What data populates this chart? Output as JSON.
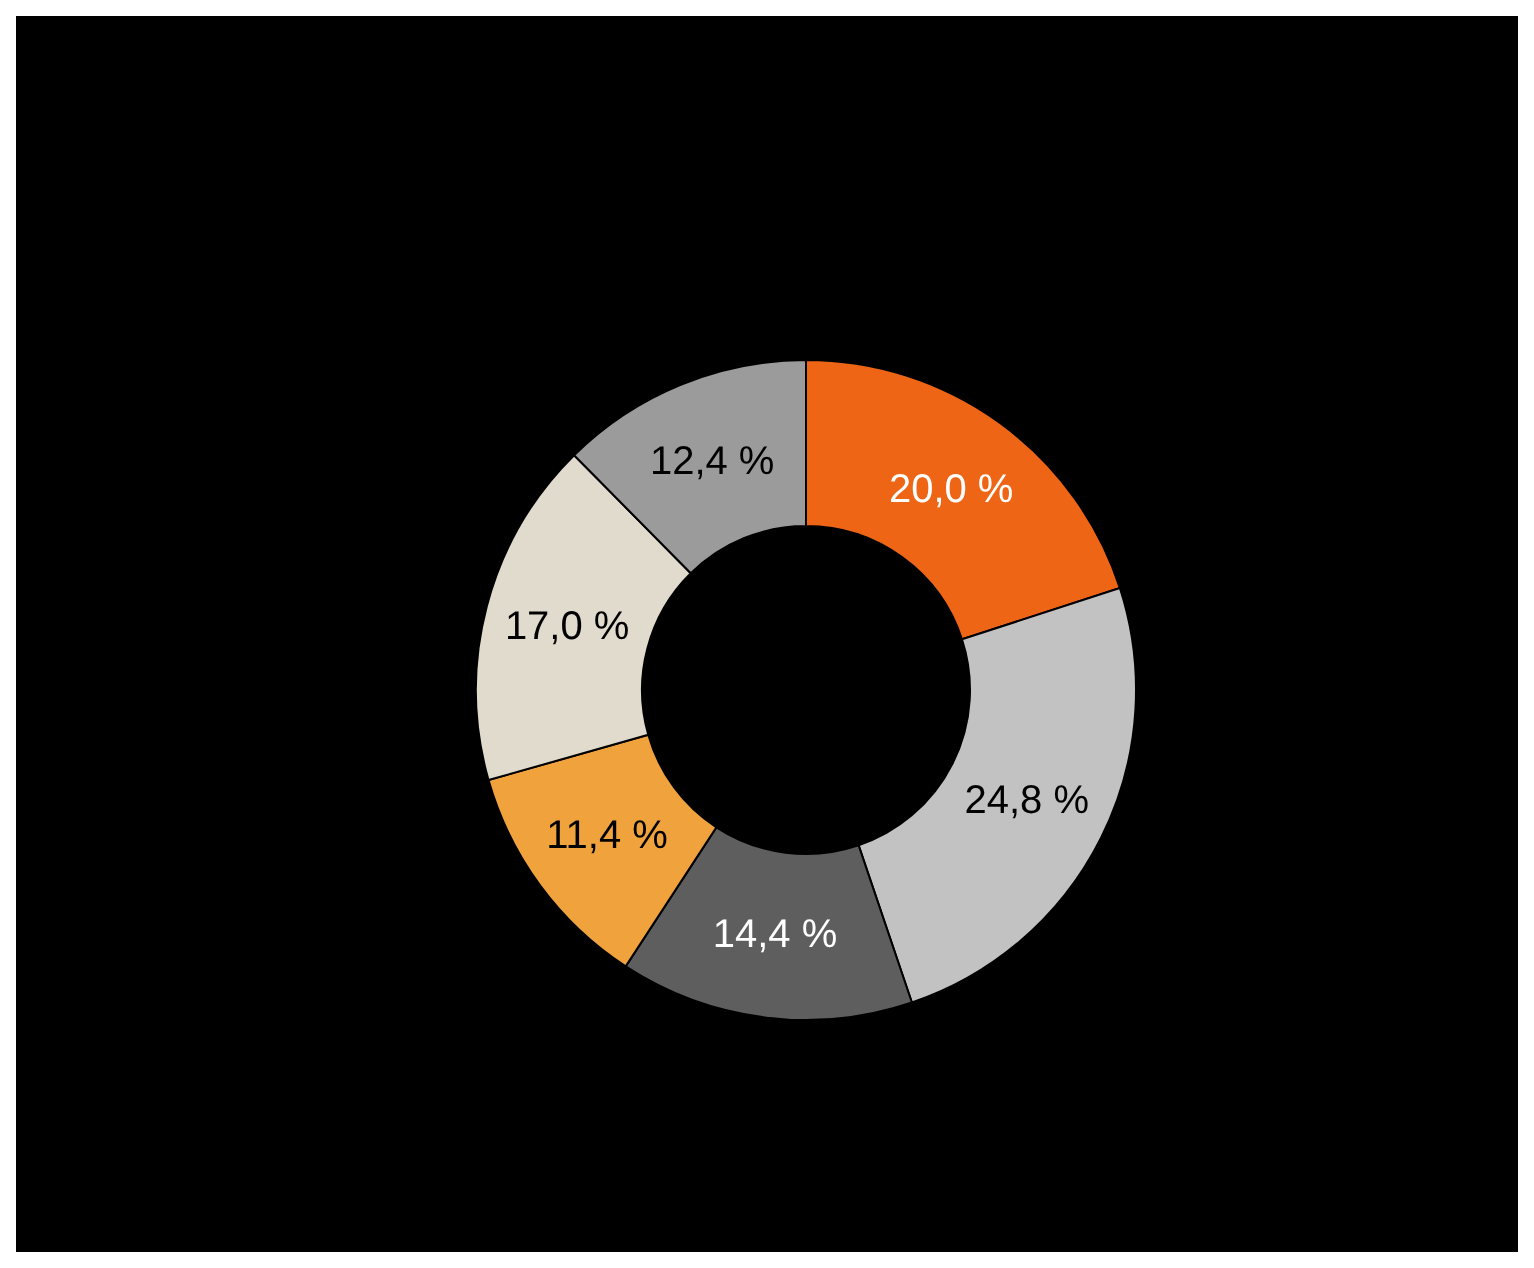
{
  "chart_data": {
    "type": "donut",
    "categories": [
      null,
      null,
      null,
      null,
      null,
      null
    ],
    "values": [
      20.0,
      24.8,
      14.4,
      11.4,
      17.0,
      12.4
    ],
    "colors": [
      "#ee6515",
      "#c2c2c2",
      "#5e5e5e",
      "#f0a23c",
      "#e0dbcd",
      "#9b9b9b"
    ],
    "value_labels": [
      "20,0 %",
      "24,8 %",
      "14,4 %",
      "11,4 %",
      "17,0 %",
      "12,4 %"
    ],
    "legend": false
  }
}
